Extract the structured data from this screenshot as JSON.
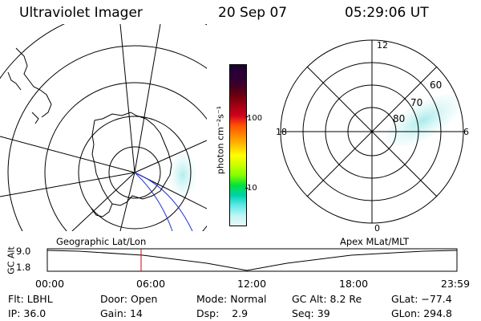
{
  "header": {
    "instrument": "Ultraviolet Imager",
    "date": "20 Sep 07",
    "time": "05:29:06 UT"
  },
  "colorbar": {
    "unit": "photon cm⁻²s⁻¹",
    "ticks": [
      "100",
      "10"
    ],
    "colors": [
      "#1a0030",
      "#2c0038",
      "#3c0028",
      "#6a0010",
      "#a00010",
      "#d00020",
      "#ff5000",
      "#ff8800",
      "#ffc000",
      "#ffff00",
      "#c8ff00",
      "#80ff00",
      "#00e040",
      "#00d0b0",
      "#60e8e8",
      "#c0f4f4",
      "#e8f8f8"
    ]
  },
  "polar_plot": {
    "hour_labels": {
      "top": "12",
      "left": "18",
      "right": "6",
      "bottom": "0"
    },
    "lat_labels": [
      "60",
      "70",
      "80"
    ]
  },
  "timeline": {
    "left_label": "Geographic Lat/Lon",
    "right_label": "Apex MLat/MLT",
    "axis_label": "GC Alt",
    "y_ticks": [
      "9.0",
      "1.8"
    ],
    "x_ticks": [
      "00:00",
      "06:00",
      "12:00",
      "18:00",
      "23:59"
    ],
    "marker_color": "#dd0000"
  },
  "info": {
    "row1": [
      {
        "label": "Flt:",
        "value": "LBHL"
      },
      {
        "label": "Door:",
        "value": "Open"
      },
      {
        "label": "Mode:",
        "value": "Normal"
      },
      {
        "label": "GC Alt:",
        "value": "8.2 Re"
      },
      {
        "label": "GLat:",
        "value": "−77.4"
      }
    ],
    "row2": [
      {
        "label": "IP:",
        "value": "36.0"
      },
      {
        "label": "Gain:",
        "value": "14"
      },
      {
        "label": "Dsp:",
        "value": "2.9"
      },
      {
        "label": "Seq:",
        "value": "39"
      },
      {
        "label": "GLon:",
        "value": "294.8"
      }
    ]
  }
}
